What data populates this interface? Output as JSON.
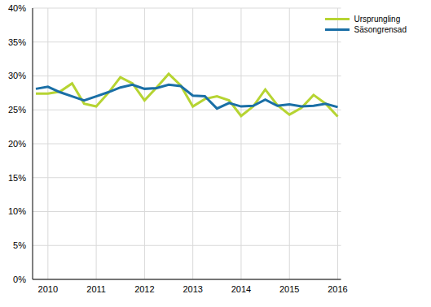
{
  "chart_data": {
    "type": "line",
    "categories": [
      null,
      "2010",
      null,
      null,
      null,
      "2011",
      null,
      null,
      null,
      "2012",
      null,
      null,
      null,
      "2013",
      null,
      null,
      null,
      "2014",
      null,
      null,
      null,
      "2015",
      null,
      null,
      null,
      "2016"
    ],
    "series": [
      {
        "name": "Ursprungling",
        "color": "#b6d432",
        "values": [
          27.4,
          27.4,
          27.7,
          28.9,
          25.9,
          25.5,
          27.5,
          29.8,
          28.9,
          26.4,
          28.3,
          30.3,
          28.6,
          25.5,
          26.6,
          27.0,
          26.4,
          24.1,
          25.5,
          28.0,
          25.7,
          24.3,
          25.3,
          27.2,
          25.9,
          24.0
        ]
      },
      {
        "name": "Säsongrensad",
        "color": "#1a6fa6",
        "values": [
          28.1,
          28.4,
          27.6,
          27.0,
          26.4,
          27.0,
          27.6,
          28.3,
          28.7,
          28.1,
          28.2,
          28.7,
          28.5,
          27.1,
          27.0,
          25.2,
          26.0,
          25.5,
          25.6,
          26.5,
          25.6,
          25.8,
          25.5,
          25.6,
          25.9,
          25.4
        ]
      }
    ],
    "ylim": [
      0,
      40
    ],
    "yticks": [
      {
        "value": 0,
        "label": "0%"
      },
      {
        "value": 5,
        "label": "5%"
      },
      {
        "value": 10,
        "label": "10%"
      },
      {
        "value": 15,
        "label": "15%"
      },
      {
        "value": 20,
        "label": "20%"
      },
      {
        "value": 25,
        "label": "25%"
      },
      {
        "value": 30,
        "label": "30%"
      },
      {
        "value": 35,
        "label": "35%"
      },
      {
        "value": 40,
        "label": "40%"
      }
    ],
    "grid": true,
    "legend": "upper right"
  }
}
